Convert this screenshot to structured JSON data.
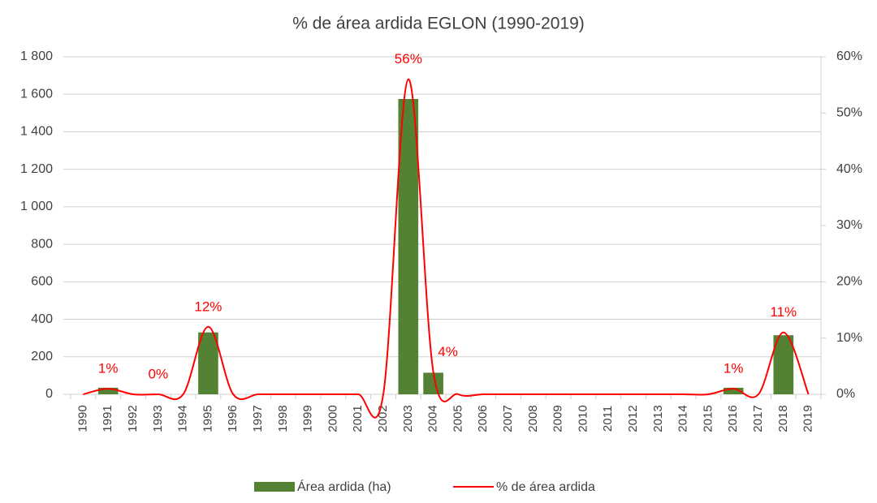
{
  "chart_data": {
    "type": "combo",
    "title": "% de área ardida EGLON (1990-2019)",
    "categories": [
      "1990",
      "1991",
      "1992",
      "1993",
      "1994",
      "1995",
      "1996",
      "1997",
      "1998",
      "1999",
      "2000",
      "2001",
      "2002",
      "2003",
      "2004",
      "2005",
      "2006",
      "2007",
      "2008",
      "2009",
      "2010",
      "2011",
      "2012",
      "2013",
      "2014",
      "2015",
      "2016",
      "2017",
      "2018",
      "2019"
    ],
    "series": [
      {
        "name": "Área ardida (ha)",
        "type": "bar",
        "color": "#548235",
        "values": [
          0,
          35,
          0,
          0,
          0,
          330,
          0,
          0,
          0,
          0,
          0,
          0,
          0,
          1575,
          115,
          0,
          0,
          0,
          0,
          0,
          0,
          0,
          0,
          0,
          0,
          0,
          35,
          0,
          315,
          0
        ]
      },
      {
        "name": "% de área ardida",
        "type": "line",
        "axis": "y2",
        "color": "#ff0000",
        "values": [
          0,
          1,
          0,
          0,
          0,
          12,
          0,
          0,
          0,
          0,
          0,
          0,
          0,
          56,
          4,
          0,
          0,
          0,
          0,
          0,
          0,
          0,
          0,
          0,
          0,
          0,
          1,
          0,
          11,
          0
        ],
        "value_labels": [
          null,
          "1%",
          null,
          "0%",
          null,
          "12%",
          null,
          null,
          null,
          null,
          null,
          null,
          null,
          "56%",
          "4%",
          null,
          null,
          null,
          null,
          null,
          null,
          null,
          null,
          null,
          null,
          null,
          "1%",
          null,
          "11%",
          null
        ]
      }
    ],
    "ylim": [
      0,
      1800
    ],
    "yticks": [
      {
        "value": 0,
        "label": "0"
      },
      {
        "value": 200,
        "label": "200"
      },
      {
        "value": 400,
        "label": "400"
      },
      {
        "value": 600,
        "label": "600"
      },
      {
        "value": 800,
        "label": "800"
      },
      {
        "value": 1000,
        "label": "1 000"
      },
      {
        "value": 1200,
        "label": "1 200"
      },
      {
        "value": 1400,
        "label": "1 400"
      },
      {
        "value": 1600,
        "label": "1 600"
      },
      {
        "value": 1800,
        "label": "1 800"
      }
    ],
    "y2lim": [
      0,
      60
    ],
    "y2ticks": [
      {
        "value": 0,
        "label": "0%"
      },
      {
        "value": 10,
        "label": "10%"
      },
      {
        "value": 20,
        "label": "20%"
      },
      {
        "value": 30,
        "label": "30%"
      },
      {
        "value": 40,
        "label": "40%"
      },
      {
        "value": 50,
        "label": "50%"
      },
      {
        "value": 60,
        "label": "60%"
      }
    ],
    "grid": true,
    "legend": "bottom"
  }
}
